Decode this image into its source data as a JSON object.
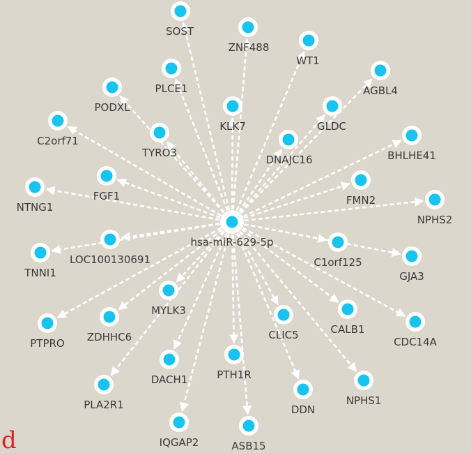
{
  "panel_label": "d",
  "colors": {
    "background": "#dcd7cc",
    "node_fill": "#18c3f0",
    "node_ring": "#ffffff",
    "edge": "#ffffff",
    "label": "#3a3a3a",
    "panel_label": "#e0201e"
  },
  "network": {
    "hub": {
      "label": "hsa-miR-629-5p"
    },
    "targets": [
      {
        "label": "SOST"
      },
      {
        "label": "ZNF488"
      },
      {
        "label": "WT1"
      },
      {
        "label": "AGBL4"
      },
      {
        "label": "PLCE1"
      },
      {
        "label": "KLK7"
      },
      {
        "label": "GLDC"
      },
      {
        "label": "PODXL"
      },
      {
        "label": "TYRO3"
      },
      {
        "label": "DNAJC16"
      },
      {
        "label": "BHLHE41"
      },
      {
        "label": "C2orf71"
      },
      {
        "label": "FGF1"
      },
      {
        "label": "FMN2"
      },
      {
        "label": "NPHS2"
      },
      {
        "label": "NTNG1"
      },
      {
        "label": "LOC100130691"
      },
      {
        "label": "C1orf125"
      },
      {
        "label": "TNNI1"
      },
      {
        "label": "GJA3"
      },
      {
        "label": "MYLK3"
      },
      {
        "label": "CALB1"
      },
      {
        "label": "CDC14A"
      },
      {
        "label": "ZDHHC6"
      },
      {
        "label": "CLIC5"
      },
      {
        "label": "PTPRO"
      },
      {
        "label": "PTH1R"
      },
      {
        "label": "DACH1"
      },
      {
        "label": "NPHS1"
      },
      {
        "label": "PLA2R1"
      },
      {
        "label": "DDN"
      },
      {
        "label": "IQGAP2"
      },
      {
        "label": "ASB15"
      }
    ]
  }
}
